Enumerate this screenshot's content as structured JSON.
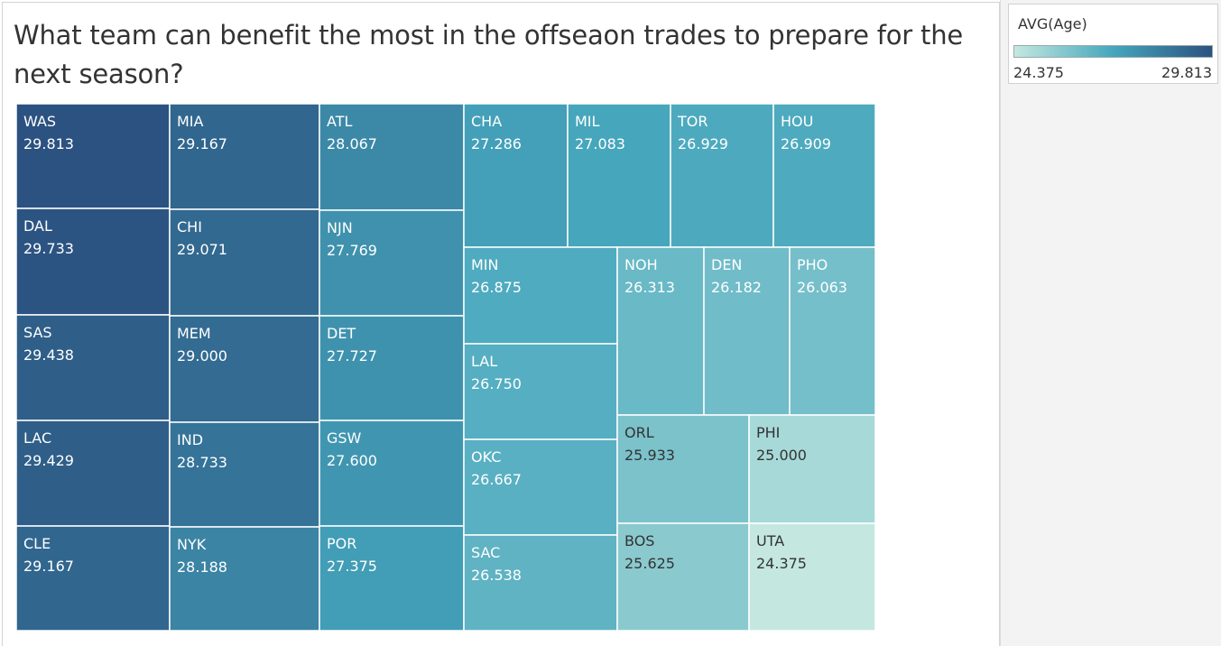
{
  "title": "What team can benefit the most in the offseaon trades to prepare for the next season?",
  "legend": {
    "title": "AVG(Age)",
    "min_label": "24.375",
    "max_label": "29.813",
    "color_low": "#c4e8e0",
    "color_mid": "#45a6bc",
    "color_high": "#2b5280"
  },
  "chart_data": {
    "type": "treemap",
    "measure": "AVG(Age)",
    "color_range": [
      24.375,
      29.813
    ],
    "items": [
      {
        "team": "WAS",
        "value": "29.813"
      },
      {
        "team": "DAL",
        "value": "29.733"
      },
      {
        "team": "SAS",
        "value": "29.438"
      },
      {
        "team": "LAC",
        "value": "29.429"
      },
      {
        "team": "CLE",
        "value": "29.167"
      },
      {
        "team": "MIA",
        "value": "29.167"
      },
      {
        "team": "CHI",
        "value": "29.071"
      },
      {
        "team": "MEM",
        "value": "29.000"
      },
      {
        "team": "IND",
        "value": "28.733"
      },
      {
        "team": "NYK",
        "value": "28.188"
      },
      {
        "team": "ATL",
        "value": "28.067"
      },
      {
        "team": "NJN",
        "value": "27.769"
      },
      {
        "team": "DET",
        "value": "27.727"
      },
      {
        "team": "GSW",
        "value": "27.600"
      },
      {
        "team": "POR",
        "value": "27.375"
      },
      {
        "team": "CHA",
        "value": "27.286"
      },
      {
        "team": "MIL",
        "value": "27.083"
      },
      {
        "team": "TOR",
        "value": "26.929"
      },
      {
        "team": "HOU",
        "value": "26.909"
      },
      {
        "team": "MIN",
        "value": "26.875"
      },
      {
        "team": "LAL",
        "value": "26.750"
      },
      {
        "team": "OKC",
        "value": "26.667"
      },
      {
        "team": "SAC",
        "value": "26.538"
      },
      {
        "team": "NOH",
        "value": "26.313"
      },
      {
        "team": "DEN",
        "value": "26.182"
      },
      {
        "team": "PHO",
        "value": "26.063"
      },
      {
        "team": "ORL",
        "value": "25.933"
      },
      {
        "team": "PHI",
        "value": "25.000"
      },
      {
        "team": "BOS",
        "value": "25.625"
      },
      {
        "team": "UTA",
        "value": "24.375"
      }
    ]
  }
}
